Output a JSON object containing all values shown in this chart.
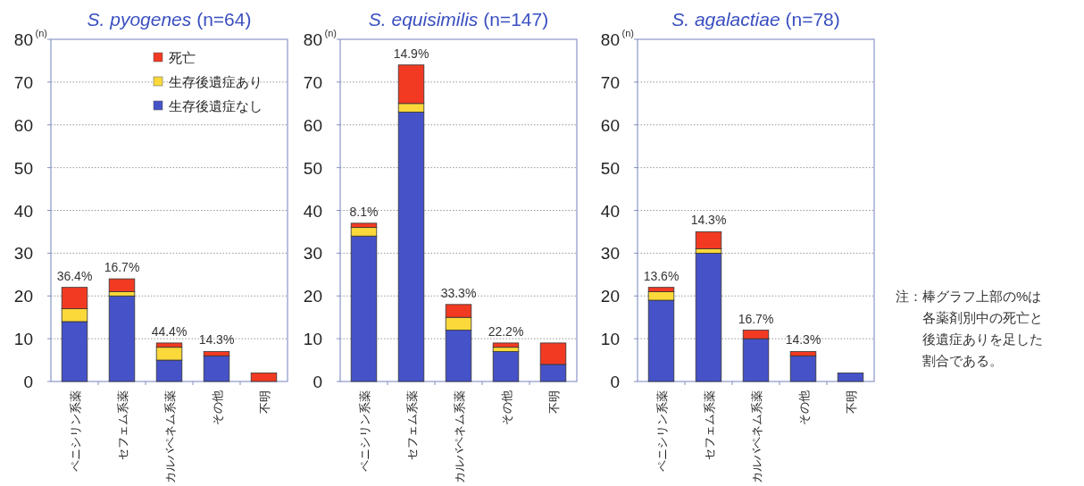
{
  "chart_data": [
    {
      "type": "bar",
      "stacked": true,
      "title": "S. pyogenes (n=64)",
      "ylabel": "(n)",
      "categories": [
        "ペニシリン系薬",
        "セフェム系薬",
        "カルバペネム系薬",
        "その他",
        "不明"
      ],
      "ylim": [
        0,
        80
      ],
      "yticks": [
        0,
        10,
        20,
        30,
        40,
        50,
        60,
        70,
        80
      ],
      "grid": "y",
      "legend": "top right",
      "series": [
        {
          "name": "生存後遺症なし",
          "color": "#4652c8",
          "values": [
            14,
            20,
            5,
            6,
            0
          ]
        },
        {
          "name": "生存後遺症あり",
          "color": "#fbd93a",
          "values": [
            3,
            1,
            3,
            0,
            0
          ]
        },
        {
          "name": "死亡",
          "color": "#f23a22",
          "values": [
            5,
            3,
            1,
            1,
            2
          ]
        }
      ],
      "annotations": [
        {
          "text": "36.4%",
          "x": "ペニシリン系薬",
          "y": 22
        },
        {
          "text": "16.7%",
          "x": "セフェム系薬",
          "y": 24
        },
        {
          "text": "44.4%",
          "x": "カルバペネム系薬",
          "y": 9
        },
        {
          "text": "14.3%",
          "x": "その他",
          "y": 7
        }
      ]
    },
    {
      "type": "bar",
      "stacked": true,
      "title": "S. equisimilis (n=147)",
      "ylabel": "(n)",
      "categories": [
        "ペニシリン系薬",
        "セフェム系薬",
        "カルバペネム系薬",
        "その他",
        "不明"
      ],
      "ylim": [
        0,
        80
      ],
      "yticks": [
        0,
        10,
        20,
        30,
        40,
        50,
        60,
        70,
        80
      ],
      "grid": "y",
      "series": [
        {
          "color": "#4652c8",
          "values": [
            34,
            63,
            12,
            7,
            4
          ]
        },
        {
          "color": "#fbd93a",
          "values": [
            2,
            2,
            3,
            1,
            0
          ]
        },
        {
          "color": "#f23a22",
          "values": [
            1,
            9,
            3,
            1,
            5
          ]
        }
      ],
      "annotations": [
        {
          "text": "8.1%",
          "x": "ペニシリン系薬",
          "y": 37
        },
        {
          "text": "14.9%",
          "x": "セフェム系薬",
          "y": 74
        },
        {
          "text": "33.3%",
          "x": "カルバペネム系薬",
          "y": 18
        },
        {
          "text": "22.2%",
          "x": "その他",
          "y": 9
        }
      ]
    },
    {
      "type": "bar",
      "stacked": true,
      "title": "S. agalactiae (n=78)",
      "ylabel": "(n)",
      "categories": [
        "ペニシリン系薬",
        "セフェム系薬",
        "カルバペネム系薬",
        "その他",
        "不明"
      ],
      "ylim": [
        0,
        80
      ],
      "yticks": [
        0,
        10,
        20,
        30,
        40,
        50,
        60,
        70,
        80
      ],
      "grid": "y",
      "series": [
        {
          "color": "#4652c8",
          "values": [
            19,
            30,
            10,
            6,
            2
          ]
        },
        {
          "color": "#fbd93a",
          "values": [
            2,
            1,
            0,
            0,
            0
          ]
        },
        {
          "color": "#f23a22",
          "values": [
            1,
            4,
            2,
            1,
            0
          ]
        }
      ],
      "annotations": [
        {
          "text": "13.6%",
          "x": "ペニシリン系薬",
          "y": 22
        },
        {
          "text": "14.3%",
          "x": "セフェム系薬",
          "y": 35
        },
        {
          "text": "16.7%",
          "x": "カルバペネム系薬",
          "y": 12
        },
        {
          "text": "14.3%",
          "x": "その他",
          "y": 7
        },
        "注：棒グラフ上部の%は各薬剤別中の死亡と後遺症ありを足した割合である。"
      ]
    }
  ]
}
